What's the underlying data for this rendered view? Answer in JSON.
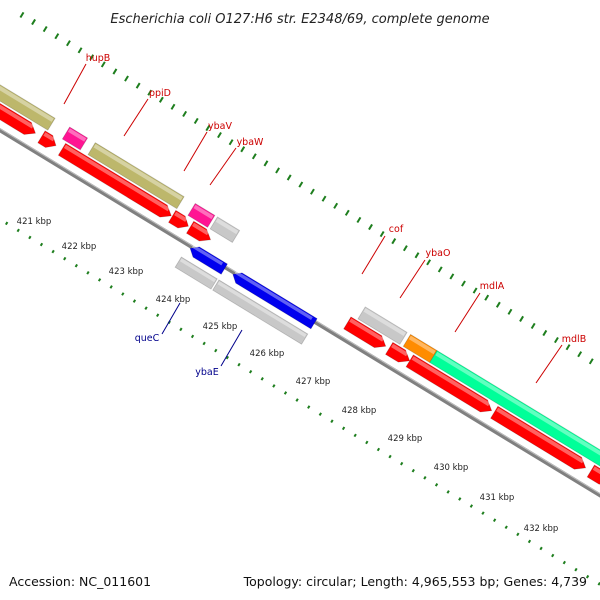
{
  "title": "Escherichia coli O127:H6 str. E2348/69, complete genome",
  "footer": {
    "accession": "Accession: NC_011601",
    "summary": "Topology: circular; Length: 4,965,553 bp; Genes: 4,739"
  },
  "colors": {
    "background": "#ffffff",
    "backbone": "#808080",
    "tick": "#1e7e1e",
    "label_forward": "#cc0000",
    "label_reverse": "#00008b",
    "cds_reverse_red": "#ff0000",
    "cds_forward_olive": "#bdb76b",
    "cds_magenta": "#ff1493",
    "cds_gray": "#c8c8c8",
    "cds_blue": "#0000ee",
    "cds_orange": "#ff8c00",
    "cds_aqua": "#00ff99",
    "cds_steel": "#4682b4",
    "cds_purple": "#483d8b"
  },
  "kbp_labels": [
    "421 kbp",
    "422 kbp",
    "423 kbp",
    "424 kbp",
    "425 kbp",
    "426 kbp",
    "427 kbp",
    "428 kbp",
    "429 kbp",
    "430 kbp",
    "431 kbp",
    "432 kbp"
  ],
  "gene_labels": [
    {
      "name": "hupB",
      "strand": "forward"
    },
    {
      "name": "ppiD",
      "strand": "forward"
    },
    {
      "name": "ybaV",
      "strand": "forward"
    },
    {
      "name": "ybaW",
      "strand": "forward"
    },
    {
      "name": "queC",
      "strand": "reverse"
    },
    {
      "name": "ybaE",
      "strand": "reverse"
    },
    {
      "name": "cof",
      "strand": "forward"
    },
    {
      "name": "ybaO",
      "strand": "forward"
    },
    {
      "name": "mdlA",
      "strand": "forward"
    },
    {
      "name": "mdlB",
      "strand": "forward"
    }
  ]
}
